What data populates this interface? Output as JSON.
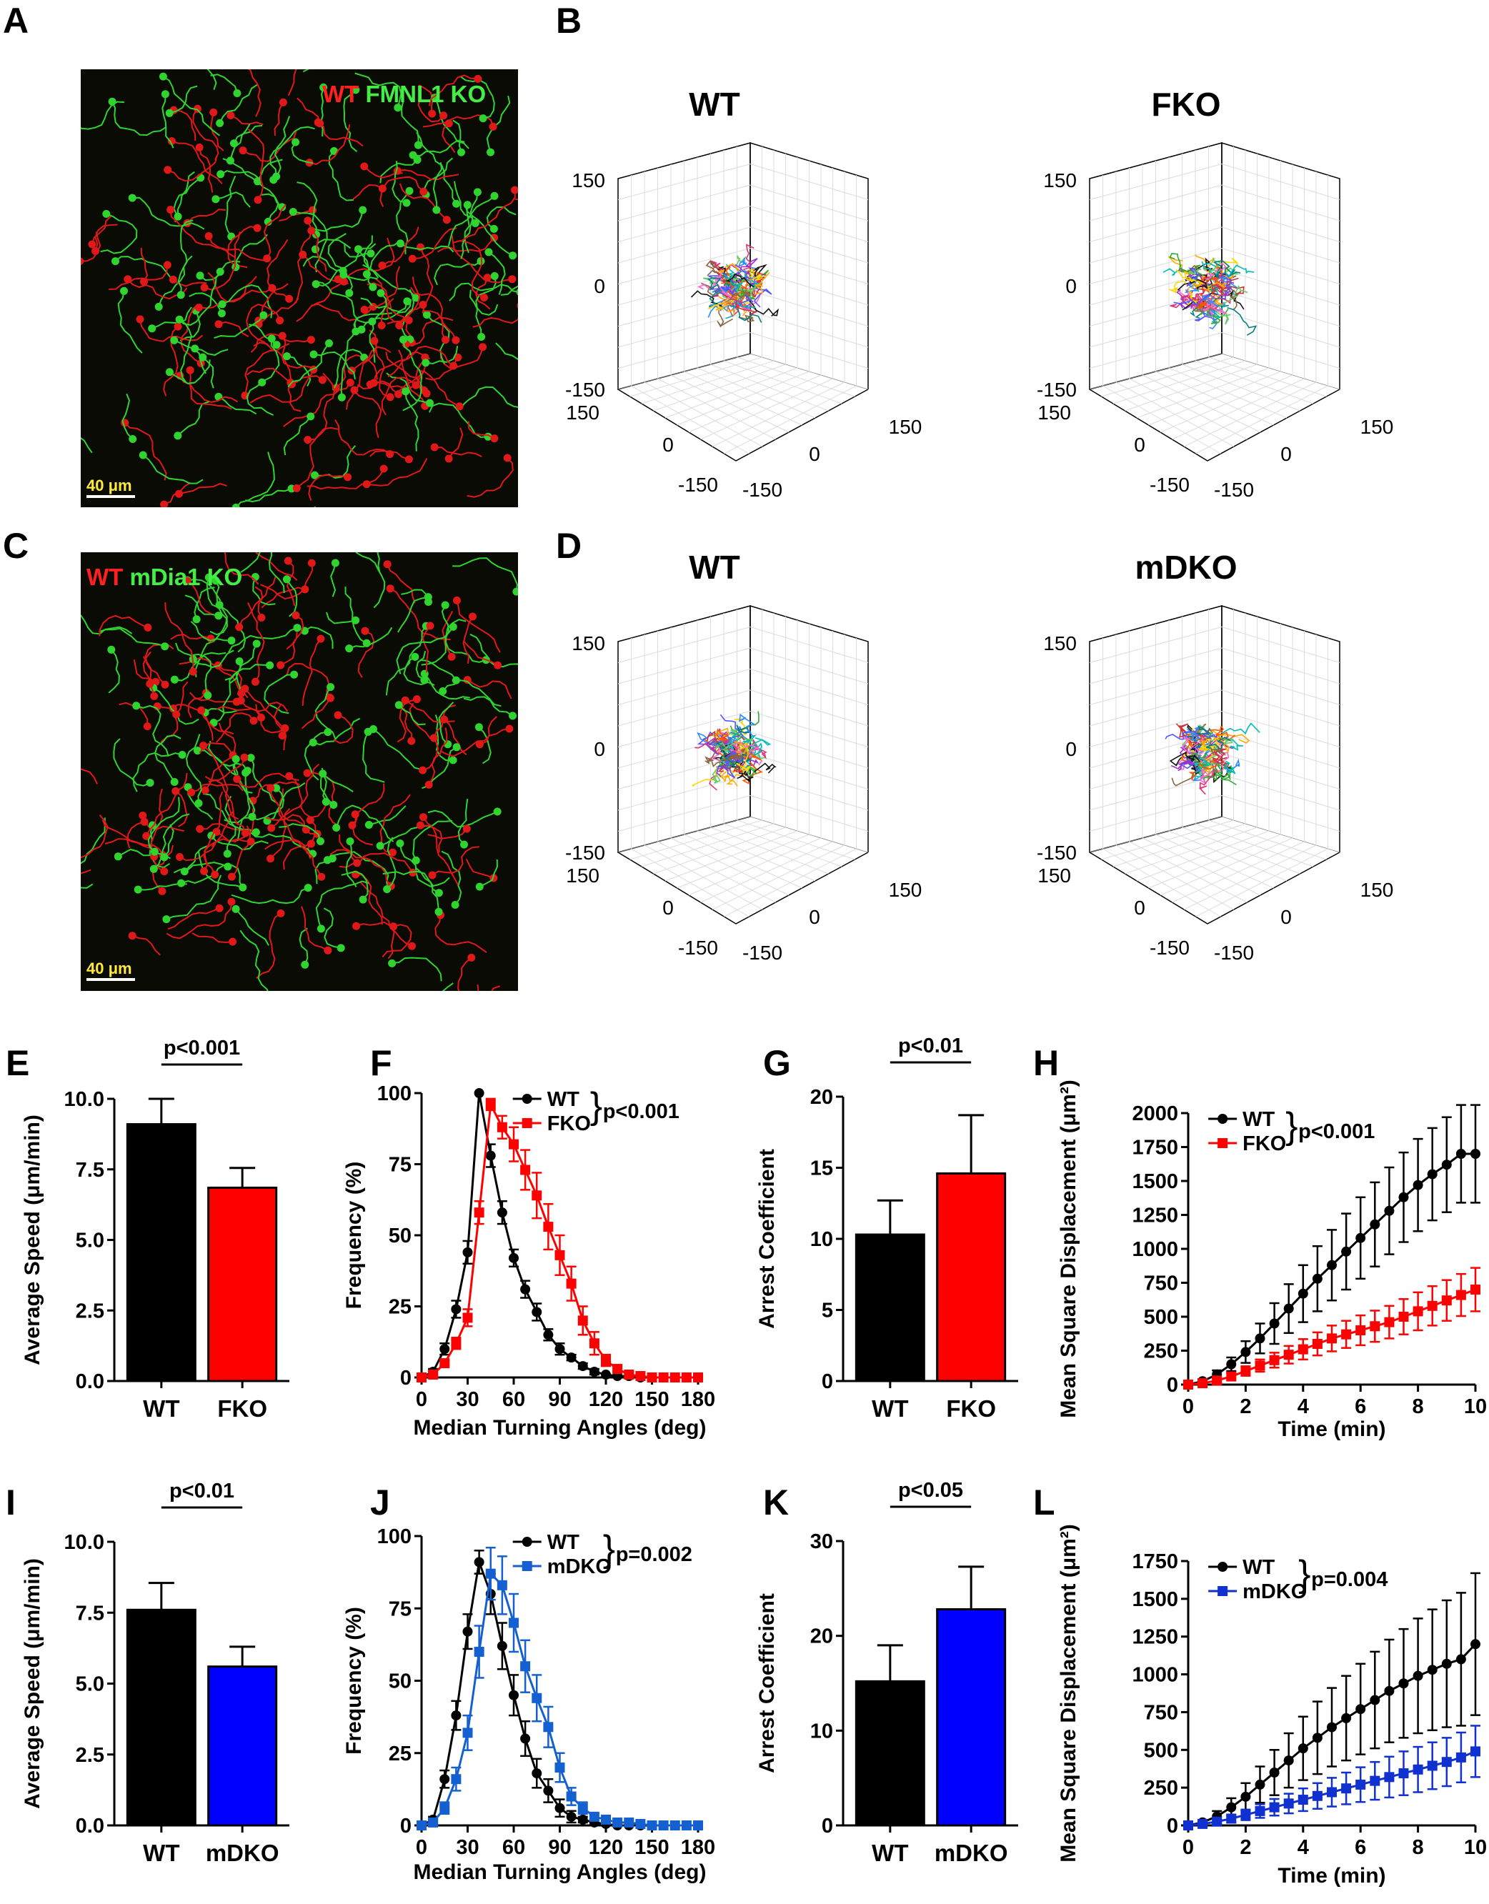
{
  "panels": {
    "A": "A",
    "B": "B",
    "C": "C",
    "D": "D",
    "E": "E",
    "F": "F",
    "G": "G",
    "H": "H",
    "I": "I",
    "J": "J",
    "K": "K",
    "L": "L"
  },
  "micrograph_A": {
    "legend_wt": "WT",
    "legend_ko": "FMNL1 KO",
    "scale": "40 μm",
    "wt_color": "#ff1a1a",
    "ko_color": "#33e033"
  },
  "micrograph_C": {
    "legend_wt": "WT",
    "legend_ko": "mDia1 KO",
    "scale": "40 μm",
    "wt_color": "#ff1a1a",
    "ko_color": "#33e033"
  },
  "tracks_B": {
    "left_title": "WT",
    "right_title": "FKO"
  },
  "tracks_D": {
    "left_title": "WT",
    "right_title": "mDKO"
  },
  "tracks_axis_ticks": {
    "z_top": "150",
    "z_mid": "0",
    "z_bot": "-150",
    "y_top": "150",
    "y_mid": "0",
    "y_bot": "-150",
    "x_left": "-150",
    "x_mid": "0",
    "x_right": "150"
  },
  "chart_data": [
    {
      "id": "E",
      "type": "bar",
      "categories": [
        "WT",
        "FKO"
      ],
      "values": [
        9.1,
        6.85
      ],
      "errors": [
        0.9,
        0.7
      ],
      "colors": [
        "#000000",
        "#ff0000"
      ],
      "ylabel": "Average Speed (μm/min)",
      "ylim": [
        0,
        10
      ],
      "yticks": [
        "0.0",
        "2.5",
        "5.0",
        "7.5",
        "10.0"
      ],
      "annotation": "p<0.001"
    },
    {
      "id": "F",
      "type": "line",
      "xlabel": "Median Turning Angles (deg)",
      "ylabel": "Frequency (%)",
      "xlim": [
        0,
        180
      ],
      "ylim": [
        0,
        100
      ],
      "xticks": [
        "0",
        "30",
        "60",
        "90",
        "120",
        "150",
        "180"
      ],
      "yticks": [
        "0",
        "25",
        "50",
        "75",
        "100"
      ],
      "annotation": "p<0.001",
      "series": [
        {
          "name": "WT",
          "color": "#000000",
          "marker": "circle",
          "x": [
            0,
            7.5,
            15,
            22.5,
            30,
            37.5,
            45,
            52.5,
            60,
            67.5,
            75,
            82.5,
            90,
            97.5,
            105,
            112.5,
            120,
            127.5,
            135,
            142.5,
            150,
            157.5,
            165,
            172.5,
            180
          ],
          "y": [
            0,
            2,
            10,
            24,
            44,
            100,
            78,
            58,
            42,
            31,
            23,
            15,
            10,
            7,
            4,
            2,
            1,
            0.5,
            0.5,
            0,
            0,
            0,
            0,
            0,
            0
          ],
          "err": [
            0,
            1,
            2,
            3,
            4,
            0,
            4,
            4,
            3,
            3,
            3,
            2,
            2,
            1,
            1,
            1,
            0,
            0,
            0,
            0,
            0,
            0,
            0,
            0,
            0
          ]
        },
        {
          "name": "FKO",
          "color": "#ff0000",
          "marker": "square",
          "x": [
            0,
            7.5,
            15,
            22.5,
            30,
            37.5,
            45,
            52.5,
            60,
            67.5,
            75,
            82.5,
            90,
            97.5,
            105,
            112.5,
            120,
            127.5,
            135,
            142.5,
            150,
            157.5,
            165,
            172.5,
            180
          ],
          "y": [
            0,
            1,
            5,
            12,
            21,
            58,
            96,
            88,
            82,
            73,
            64,
            53,
            43,
            33,
            20,
            12,
            6,
            3,
            1,
            0.5,
            0,
            0,
            0,
            0,
            0
          ],
          "err": [
            0,
            1,
            1,
            2,
            3,
            4,
            2,
            4,
            6,
            7,
            8,
            8,
            7,
            6,
            5,
            4,
            2,
            1,
            1,
            0,
            0,
            0,
            0,
            0,
            0
          ]
        }
      ]
    },
    {
      "id": "G",
      "type": "bar",
      "categories": [
        "WT",
        "FKO"
      ],
      "values": [
        10.3,
        14.6
      ],
      "errors": [
        2.4,
        4.1
      ],
      "colors": [
        "#000000",
        "#ff0000"
      ],
      "ylabel": "Arrest Coefficient",
      "ylim": [
        0,
        20
      ],
      "yticks": [
        "0",
        "5",
        "10",
        "15",
        "20"
      ],
      "annotation": "p<0.01"
    },
    {
      "id": "H",
      "type": "line",
      "xlabel": "Time (min)",
      "ylabel": "Mean Square Displacement (μm²)",
      "xlim": [
        0,
        10
      ],
      "ylim": [
        0,
        2000
      ],
      "xticks": [
        "0",
        "2",
        "4",
        "6",
        "8",
        "10"
      ],
      "yticks": [
        "0",
        "250",
        "500",
        "750",
        "1000",
        "1250",
        "1500",
        "1750",
        "2000"
      ],
      "annotation": "p<0.001",
      "series": [
        {
          "name": "WT",
          "color": "#000000",
          "marker": "circle",
          "x": [
            0,
            0.5,
            1,
            1.5,
            2,
            2.5,
            3,
            3.5,
            4,
            4.5,
            5,
            5.5,
            6,
            6.5,
            7,
            7.5,
            8,
            8.5,
            9,
            9.5,
            10
          ],
          "y": [
            0,
            25,
            75,
            150,
            240,
            340,
            450,
            560,
            670,
            780,
            880,
            980,
            1080,
            1180,
            1280,
            1380,
            1470,
            1550,
            1620,
            1700,
            1700
          ],
          "err": [
            0,
            15,
            30,
            50,
            80,
            110,
            150,
            180,
            210,
            240,
            260,
            280,
            300,
            310,
            320,
            330,
            340,
            340,
            350,
            360,
            360
          ]
        },
        {
          "name": "FKO",
          "color": "#ff0000",
          "marker": "square",
          "x": [
            0,
            0.5,
            1,
            1.5,
            2,
            2.5,
            3,
            3.5,
            4,
            4.5,
            5,
            5.5,
            6,
            6.5,
            7,
            7.5,
            8,
            8.5,
            9,
            9.5,
            10
          ],
          "y": [
            0,
            10,
            30,
            60,
            100,
            140,
            180,
            220,
            260,
            300,
            340,
            370,
            400,
            430,
            460,
            500,
            540,
            580,
            620,
            660,
            700
          ],
          "err": [
            0,
            8,
            15,
            25,
            35,
            45,
            55,
            65,
            75,
            85,
            95,
            100,
            110,
            115,
            120,
            130,
            140,
            145,
            150,
            155,
            160
          ]
        }
      ]
    },
    {
      "id": "I",
      "type": "bar",
      "categories": [
        "WT",
        "mDKO"
      ],
      "values": [
        7.6,
        5.6
      ],
      "errors": [
        0.95,
        0.7
      ],
      "colors": [
        "#000000",
        "#0000ff"
      ],
      "ylabel": "Average Speed (μm/min)",
      "ylim": [
        0,
        10
      ],
      "yticks": [
        "0.0",
        "2.5",
        "5.0",
        "7.5",
        "10.0"
      ],
      "annotation": "p<0.01"
    },
    {
      "id": "J",
      "type": "line",
      "xlabel": "Median Turning Angles (deg)",
      "ylabel": "Frequency (%)",
      "xlim": [
        0,
        180
      ],
      "ylim": [
        0,
        100
      ],
      "xticks": [
        "0",
        "30",
        "60",
        "90",
        "120",
        "150",
        "180"
      ],
      "yticks": [
        "0",
        "25",
        "50",
        "75",
        "100"
      ],
      "annotation": "p=0.002",
      "series": [
        {
          "name": "WT",
          "color": "#000000",
          "marker": "circle",
          "x": [
            0,
            7.5,
            15,
            22.5,
            30,
            37.5,
            45,
            52.5,
            60,
            67.5,
            75,
            82.5,
            90,
            97.5,
            105,
            112.5,
            120,
            127.5,
            135,
            142.5,
            150,
            157.5,
            165,
            172.5,
            180
          ],
          "y": [
            0,
            2,
            16,
            38,
            67,
            91,
            80,
            62,
            45,
            30,
            18,
            12,
            6,
            3,
            2,
            1,
            0.5,
            0,
            0,
            0,
            0,
            0,
            0,
            0,
            0
          ],
          "err": [
            0,
            1,
            3,
            5,
            6,
            4,
            7,
            8,
            7,
            6,
            5,
            4,
            3,
            2,
            1,
            1,
            0,
            0,
            0,
            0,
            0,
            0,
            0,
            0,
            0
          ]
        },
        {
          "name": "mDKO",
          "color": "#1560d0",
          "marker": "square",
          "x": [
            0,
            7.5,
            15,
            22.5,
            30,
            37.5,
            45,
            52.5,
            60,
            67.5,
            75,
            82.5,
            90,
            97.5,
            105,
            112.5,
            120,
            127.5,
            135,
            142.5,
            150,
            157.5,
            165,
            172.5,
            180
          ],
          "y": [
            0,
            1,
            6,
            16,
            32,
            60,
            87,
            83,
            70,
            55,
            44,
            34,
            20,
            10,
            6,
            3,
            2,
            1,
            1,
            0.5,
            0,
            0,
            0,
            0,
            0
          ],
          "err": [
            0,
            1,
            2,
            4,
            6,
            9,
            9,
            10,
            10,
            9,
            8,
            7,
            5,
            3,
            2,
            1,
            1,
            0,
            0,
            0,
            0,
            0,
            0,
            0,
            0
          ]
        }
      ]
    },
    {
      "id": "K",
      "type": "bar",
      "categories": [
        "WT",
        "mDKO"
      ],
      "values": [
        15.2,
        22.8
      ],
      "errors": [
        3.8,
        4.5
      ],
      "colors": [
        "#000000",
        "#0000ff"
      ],
      "ylabel": "Arrest Coefficient",
      "ylim": [
        0,
        30
      ],
      "yticks": [
        "0",
        "10",
        "20",
        "30"
      ],
      "annotation": "p<0.05"
    },
    {
      "id": "L",
      "type": "line",
      "xlabel": "Time (min)",
      "ylabel": "Mean Square Displacement (μm²)",
      "xlim": [
        0,
        10
      ],
      "ylim": [
        0,
        1750
      ],
      "xticks": [
        "0",
        "2",
        "4",
        "6",
        "8",
        "10"
      ],
      "yticks": [
        "0",
        "250",
        "500",
        "750",
        "1000",
        "1250",
        "1500",
        "1750"
      ],
      "annotation": "p=0.004",
      "series": [
        {
          "name": "WT",
          "color": "#000000",
          "marker": "circle",
          "x": [
            0,
            0.5,
            1,
            1.5,
            2,
            2.5,
            3,
            3.5,
            4,
            4.5,
            5,
            5.5,
            6,
            6.5,
            7,
            7.5,
            8,
            8.5,
            9,
            9.5,
            10
          ],
          "y": [
            0,
            20,
            60,
            120,
            190,
            270,
            350,
            430,
            510,
            580,
            650,
            710,
            770,
            830,
            890,
            940,
            990,
            1030,
            1070,
            1100,
            1200
          ],
          "err": [
            0,
            15,
            35,
            60,
            90,
            120,
            150,
            180,
            210,
            240,
            260,
            280,
            300,
            320,
            340,
            360,
            380,
            400,
            420,
            440,
            470
          ]
        },
        {
          "name": "mDKO",
          "color": "#1030d0",
          "marker": "square",
          "x": [
            0,
            0.5,
            1,
            1.5,
            2,
            2.5,
            3,
            3.5,
            4,
            4.5,
            5,
            5.5,
            6,
            6.5,
            7,
            7.5,
            8,
            8.5,
            9,
            9.5,
            10
          ],
          "y": [
            0,
            10,
            25,
            45,
            70,
            95,
            120,
            145,
            170,
            195,
            220,
            245,
            270,
            295,
            320,
            345,
            370,
            395,
            420,
            450,
            490
          ],
          "err": [
            0,
            8,
            15,
            25,
            35,
            45,
            55,
            65,
            75,
            85,
            95,
            105,
            115,
            125,
            135,
            145,
            150,
            155,
            160,
            165,
            170
          ]
        }
      ]
    }
  ]
}
